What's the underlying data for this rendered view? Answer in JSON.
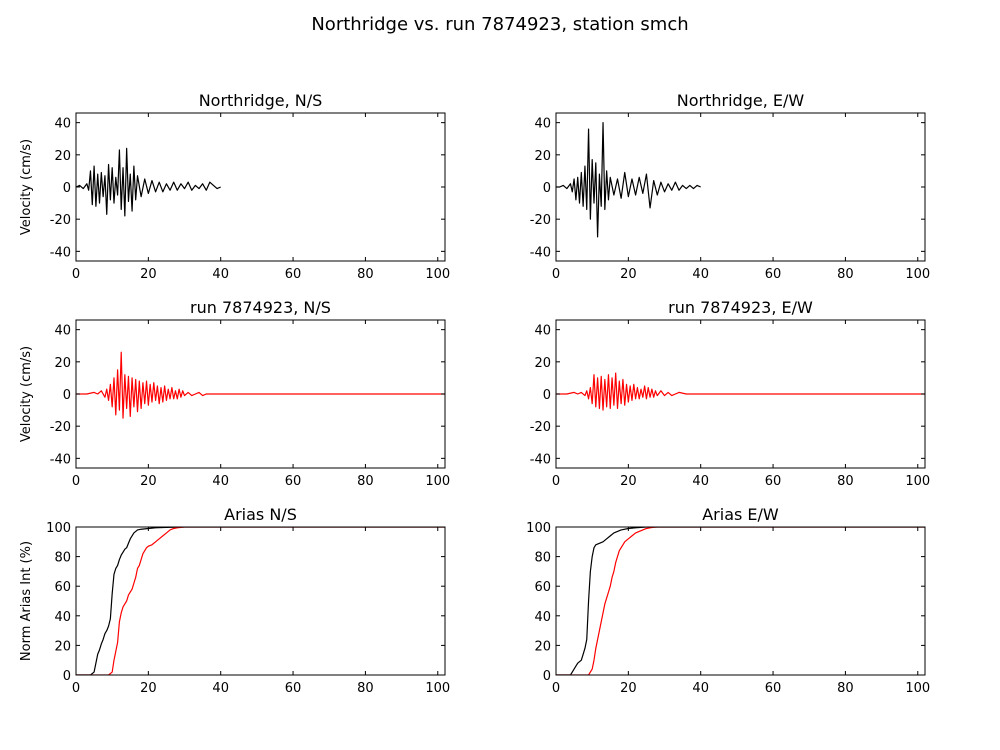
{
  "figure_title": "Northridge vs. run 7874923, station smch",
  "colors": {
    "recorded": "#000000",
    "simulated": "#ff0000"
  },
  "chart_data": [
    {
      "id": "ns-velocity-recorded",
      "type": "line",
      "title": "Northridge, N/S",
      "ylabel": "Velocity (cm/s)",
      "xlabel": "",
      "xlim": [
        0,
        102
      ],
      "ylim": [
        -46,
        46
      ],
      "xticks": [
        0,
        20,
        40,
        60,
        80,
        100
      ],
      "yticks": [
        -40,
        -20,
        0,
        20,
        40
      ],
      "grid": false,
      "series": [
        {
          "color": "#000000",
          "x": [
            0,
            1,
            2,
            3,
            3.5,
            4,
            4.5,
            5,
            5.5,
            6,
            6.5,
            7,
            7.5,
            8,
            8.5,
            9,
            9.5,
            10,
            10.5,
            11,
            11.5,
            12,
            12.5,
            13,
            13.5,
            14,
            14.5,
            15,
            15.5,
            16,
            16.5,
            17,
            18,
            19,
            20,
            21,
            22,
            23,
            24,
            25,
            26,
            27,
            28,
            29,
            30,
            31,
            32,
            33,
            34,
            35,
            36,
            37,
            38,
            39,
            40
          ],
          "y": [
            0,
            1,
            -1,
            2,
            -2,
            10,
            -11,
            13,
            -12,
            8,
            -10,
            9,
            -6,
            7,
            -17,
            14,
            -8,
            12,
            -10,
            6,
            -5,
            23,
            -14,
            12,
            -18,
            24,
            -9,
            8,
            -15,
            13,
            -8,
            7,
            -6,
            5,
            -4,
            4,
            -3,
            3,
            -3,
            2,
            -2,
            3,
            -2,
            2,
            -1,
            3,
            -2,
            1,
            -1,
            2,
            -2,
            3,
            1,
            -1,
            0
          ]
        }
      ]
    },
    {
      "id": "ew-velocity-recorded",
      "type": "line",
      "title": "Northridge, E/W",
      "ylabel": "",
      "xlabel": "",
      "xlim": [
        0,
        102
      ],
      "ylim": [
        -46,
        46
      ],
      "xticks": [
        0,
        20,
        40,
        60,
        80,
        100
      ],
      "yticks": [
        -40,
        -20,
        0,
        20,
        40
      ],
      "grid": false,
      "series": [
        {
          "color": "#000000",
          "x": [
            0,
            1,
            2,
            3,
            4,
            4.5,
            5,
            5.5,
            6,
            6.5,
            7,
            7.5,
            8,
            8.5,
            9,
            9.5,
            10,
            10.5,
            11,
            11.5,
            12,
            12.5,
            13,
            13.5,
            14,
            14.5,
            15,
            16,
            17,
            18,
            19,
            20,
            21,
            22,
            23,
            24,
            25,
            26,
            27,
            28,
            29,
            30,
            31,
            32,
            33,
            34,
            35,
            36,
            37,
            38,
            39,
            40
          ],
          "y": [
            0,
            0,
            1,
            -1,
            2,
            -3,
            5,
            -8,
            6,
            -10,
            9,
            -12,
            13,
            -14,
            36,
            -20,
            17,
            -10,
            15,
            -31,
            8,
            -12,
            40,
            -14,
            10,
            -8,
            6,
            -5,
            5,
            -7,
            9,
            -6,
            5,
            -5,
            6,
            -4,
            8,
            -13,
            4,
            -5,
            3,
            -3,
            2,
            -2,
            3,
            -2,
            1,
            -1,
            1,
            -1,
            1,
            0
          ]
        }
      ]
    },
    {
      "id": "ns-velocity-simulated",
      "type": "line",
      "title": "run 7874923, N/S",
      "ylabel": "Velocity (cm/s)",
      "xlabel": "",
      "xlim": [
        0,
        102
      ],
      "ylim": [
        -46,
        46
      ],
      "xticks": [
        0,
        20,
        40,
        60,
        80,
        100
      ],
      "yticks": [
        -40,
        -20,
        0,
        20,
        40
      ],
      "grid": false,
      "series": [
        {
          "color": "#ff0000",
          "x": [
            0,
            3,
            5,
            6,
            7,
            8,
            8.5,
            9,
            9.5,
            10,
            10.5,
            11,
            11.5,
            12,
            12.5,
            13,
            13.5,
            14,
            14.5,
            15,
            15.5,
            16,
            16.5,
            17,
            17.5,
            18,
            18.5,
            19,
            19.5,
            20,
            20.5,
            21,
            21.5,
            22,
            22.5,
            23,
            23.5,
            24,
            24.5,
            25,
            25.5,
            26,
            26.5,
            27,
            27.5,
            28,
            28.5,
            29,
            29.5,
            30,
            31,
            32,
            33,
            34,
            35,
            36,
            38,
            40,
            50,
            60,
            70,
            80,
            90,
            100,
            102
          ],
          "y": [
            0,
            0,
            1,
            0,
            2,
            -2,
            3,
            -4,
            6,
            -8,
            10,
            -13,
            15,
            -10,
            26,
            -15,
            12,
            -9,
            11,
            -14,
            10,
            -8,
            9,
            -11,
            8,
            -9,
            7,
            -6,
            8,
            -7,
            6,
            -5,
            7,
            -4,
            5,
            -6,
            4,
            -5,
            5,
            -4,
            3,
            -3,
            4,
            -3,
            2,
            -3,
            3,
            -2,
            2,
            -1,
            1,
            -1,
            0,
            1,
            -1,
            0,
            0,
            0,
            0,
            0,
            0,
            0,
            0,
            0,
            0
          ]
        }
      ]
    },
    {
      "id": "ew-velocity-simulated",
      "type": "line",
      "title": "run 7874923, E/W",
      "ylabel": "",
      "xlabel": "",
      "xlim": [
        0,
        102
      ],
      "ylim": [
        -46,
        46
      ],
      "xticks": [
        0,
        20,
        40,
        60,
        80,
        100
      ],
      "yticks": [
        -40,
        -20,
        0,
        20,
        40
      ],
      "grid": false,
      "series": [
        {
          "color": "#ff0000",
          "x": [
            0,
            3,
            5,
            6,
            7,
            8,
            8.5,
            9,
            9.5,
            10,
            10.5,
            11,
            11.5,
            12,
            12.5,
            13,
            13.5,
            14,
            14.5,
            15,
            15.5,
            16,
            16.5,
            17,
            17.5,
            18,
            18.5,
            19,
            19.5,
            20,
            20.5,
            21,
            21.5,
            22,
            22.5,
            23,
            23.5,
            24,
            24.5,
            25,
            25.5,
            26,
            26.5,
            27,
            27.5,
            28,
            29,
            30,
            31,
            32,
            33,
            34,
            36,
            38,
            40,
            50,
            60,
            70,
            80,
            90,
            100,
            102
          ],
          "y": [
            0,
            0,
            1,
            0,
            1,
            -1,
            2,
            -3,
            4,
            -6,
            12,
            -8,
            10,
            -9,
            11,
            -10,
            9,
            -8,
            12,
            -9,
            10,
            -7,
            13,
            -9,
            8,
            -6,
            9,
            -7,
            6,
            -5,
            5,
            -4,
            6,
            -3,
            4,
            -3,
            3,
            -2,
            5,
            -3,
            4,
            -2,
            3,
            -2,
            2,
            -1,
            2,
            -1,
            1,
            -1,
            0,
            1,
            0,
            0,
            0,
            0,
            0,
            0,
            0,
            0,
            0,
            0
          ]
        }
      ]
    },
    {
      "id": "ns-arias",
      "type": "line",
      "title": "Arias N/S",
      "ylabel": "Norm Arias Int (%)",
      "xlabel": "",
      "xlim": [
        0,
        102
      ],
      "ylim": [
        0,
        100
      ],
      "xticks": [
        0,
        20,
        40,
        60,
        80,
        100
      ],
      "yticks": [
        0,
        20,
        40,
        60,
        80,
        100
      ],
      "grid": false,
      "series": [
        {
          "color": "#000000",
          "x": [
            0,
            4,
            5,
            5.5,
            6,
            6.5,
            7,
            7.5,
            8,
            8.5,
            9,
            9.5,
            10,
            10.5,
            11,
            11.5,
            12,
            12.5,
            13,
            13.5,
            14,
            14.5,
            15,
            16,
            17,
            18,
            20,
            22,
            25,
            30,
            35,
            40,
            60,
            80,
            100,
            102
          ],
          "y": [
            0,
            0,
            2,
            8,
            14,
            17,
            21,
            24,
            28,
            30,
            33,
            38,
            55,
            68,
            72,
            74,
            78,
            81,
            83,
            85,
            86,
            89,
            92,
            96,
            98,
            98.5,
            99,
            99.5,
            99.7,
            100,
            100,
            100,
            100,
            100,
            100,
            100
          ]
        },
        {
          "color": "#ff0000",
          "x": [
            0,
            9,
            10,
            10.5,
            11,
            11.5,
            12,
            12.5,
            13,
            13.5,
            14,
            14.5,
            15,
            15.5,
            16,
            16.5,
            17,
            17.5,
            18,
            18.5,
            19,
            19.5,
            20,
            21,
            22,
            23,
            24,
            25,
            26,
            27,
            28,
            30,
            32,
            35,
            40,
            60,
            80,
            100,
            102
          ],
          "y": [
            0,
            0,
            2,
            10,
            16,
            22,
            36,
            42,
            46,
            48,
            50,
            54,
            56,
            58,
            62,
            66,
            72,
            74,
            78,
            82,
            84,
            86,
            87,
            88,
            90,
            92,
            94,
            96,
            98,
            99,
            99.5,
            100,
            100,
            100,
            100,
            100,
            100,
            100,
            100
          ]
        }
      ]
    },
    {
      "id": "ew-arias",
      "type": "line",
      "title": "Arias E/W",
      "ylabel": "",
      "xlabel": "",
      "xlim": [
        0,
        102
      ],
      "ylim": [
        0,
        100
      ],
      "xticks": [
        0,
        20,
        40,
        60,
        80,
        100
      ],
      "yticks": [
        0,
        20,
        40,
        60,
        80,
        100
      ],
      "grid": false,
      "series": [
        {
          "color": "#000000",
          "x": [
            0,
            4,
            4.5,
            5,
            5.5,
            6,
            6.5,
            7,
            7.5,
            8,
            8.5,
            9,
            9.5,
            10,
            10.5,
            11,
            12,
            13,
            14,
            15,
            16,
            17,
            18,
            20,
            22,
            25,
            30,
            40,
            60,
            80,
            100,
            102
          ],
          "y": [
            0,
            0,
            2,
            4,
            6,
            8,
            9,
            10,
            14,
            18,
            24,
            50,
            70,
            80,
            86,
            88,
            89,
            90,
            92,
            94,
            96,
            97,
            98,
            99,
            99.5,
            100,
            100,
            100,
            100,
            100,
            100,
            100
          ]
        },
        {
          "color": "#ff0000",
          "x": [
            0,
            9,
            10,
            10.5,
            11,
            11.5,
            12,
            12.5,
            13,
            13.5,
            14,
            14.5,
            15,
            15.5,
            16,
            16.5,
            17,
            17.5,
            18,
            18.5,
            19,
            19.5,
            20,
            21,
            22,
            23,
            24,
            25,
            26,
            27,
            28,
            30,
            35,
            40,
            60,
            80,
            100,
            102
          ],
          "y": [
            0,
            0,
            4,
            10,
            18,
            24,
            30,
            36,
            42,
            48,
            52,
            56,
            60,
            66,
            70,
            76,
            80,
            84,
            86,
            88,
            90,
            91,
            92,
            94,
            96,
            97,
            98,
            99,
            99.5,
            99.8,
            100,
            100,
            100,
            100,
            100,
            100,
            100,
            100
          ]
        }
      ]
    }
  ]
}
